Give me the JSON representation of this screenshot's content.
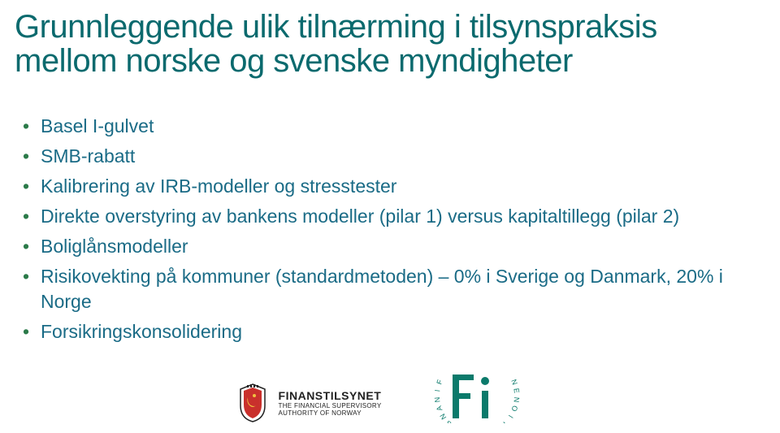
{
  "title_color": "#0b6a6e",
  "title_fontsize": 40,
  "title_line1": "Grunnleggende ulik tilnærming  i tilsynspraksis",
  "title_line2": "mellom norske og svenske myndigheter",
  "bullet_marker_color": "#2b7a49",
  "bullet_text_color": "#1a6b86",
  "bullet_fontsize": 23,
  "bullets": {
    "items": [
      {
        "text": "Basel I-gulvet"
      },
      {
        "text": "SMB-rabatt"
      },
      {
        "text": "Kalibrering av IRB-modeller og stresstester"
      },
      {
        "text": "Direkte overstyring av bankens modeller (pilar 1) versus kapitaltillegg (pilar 2)"
      },
      {
        "text": "Boliglånsmodeller"
      },
      {
        "text": "Risikovekting på kommuner (standardmetoden) – 0% i Sverige og Danmark, 20% i Norge"
      },
      {
        "text": "Forsikringskonsolidering"
      }
    ]
  },
  "logos": {
    "finanstilsynet": {
      "name": "FINANSTILSYNET",
      "subtitle1": "THE FINANCIAL SUPERVISORY",
      "subtitle2": "AUTHORITY OF NORWAY",
      "color": "#222222"
    },
    "fi": {
      "letters": "FINANSINSPEKTIONEN",
      "color": "#0b7a6b"
    }
  }
}
